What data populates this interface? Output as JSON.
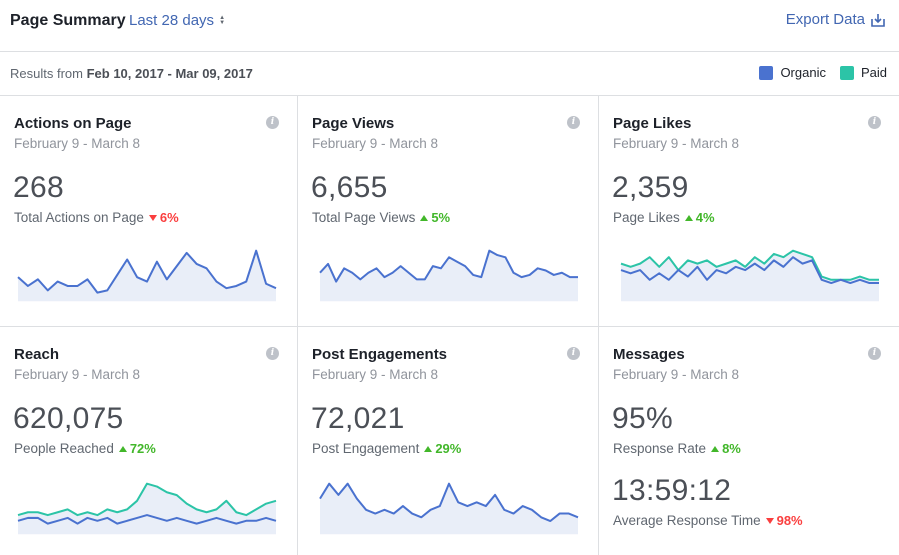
{
  "header": {
    "title": "Page Summary",
    "range_label": "Last 28 days",
    "export_label": "Export Data"
  },
  "subheader": {
    "results_prefix": "Results from",
    "results_range": "Feb 10, 2017 - Mar 09, 2017"
  },
  "legend": [
    {
      "name": "Organic",
      "color": "#4a72cf"
    },
    {
      "name": "Paid",
      "color": "#2cc4a7"
    }
  ],
  "colors": {
    "organic": "#4a72cf",
    "paid": "#2cc4a7",
    "fill": "#e9eef8",
    "up": "#42b72a",
    "down": "#fa3e3e"
  },
  "cards": [
    {
      "title": "Actions on Page",
      "subtitle": "February 9 - March 8",
      "value": "268",
      "metric_label": "Total Actions on Page",
      "change": "6%",
      "direction": "down",
      "organic": [
        10,
        6,
        9,
        4,
        8,
        6,
        6,
        9,
        3,
        4,
        11,
        18,
        10,
        8,
        17,
        9,
        15,
        21,
        16,
        14,
        8,
        5,
        6,
        8,
        22,
        7,
        5
      ],
      "paid": null
    },
    {
      "title": "Page Views",
      "subtitle": "February 9 - March 8",
      "value": "6,655",
      "metric_label": "Total Page Views",
      "change": "5%",
      "direction": "up",
      "organic": [
        12,
        16,
        8,
        14,
        12,
        9,
        12,
        14,
        10,
        12,
        15,
        12,
        9,
        9,
        15,
        14,
        19,
        17,
        15,
        11,
        10,
        22,
        20,
        19,
        12,
        10,
        11,
        14,
        13,
        11,
        12,
        10,
        10
      ],
      "paid": null
    },
    {
      "title": "Page Likes",
      "subtitle": "February 9 - March 8",
      "value": "2,359",
      "metric_label": "Page Likes",
      "change": "4%",
      "direction": "up",
      "organic": [
        9,
        8,
        9,
        6,
        8,
        6,
        9,
        7,
        10,
        6,
        9,
        8,
        10,
        9,
        11,
        9,
        12,
        10,
        13,
        11,
        12,
        6,
        5,
        6,
        5,
        6,
        5,
        5
      ],
      "paid": [
        11,
        10,
        11,
        13,
        10,
        13,
        9,
        12,
        11,
        12,
        10,
        11,
        12,
        10,
        13,
        11,
        14,
        13,
        15,
        14,
        13,
        7,
        6,
        6,
        6,
        7,
        6,
        6
      ]
    },
    {
      "title": "Reach",
      "subtitle": "February 9 - March 8",
      "value": "620,075",
      "metric_label": "People Reached",
      "change": "72%",
      "direction": "up",
      "organic": [
        4,
        5,
        5,
        3,
        4,
        5,
        3,
        5,
        4,
        5,
        3,
        4,
        5,
        6,
        5,
        4,
        5,
        4,
        3,
        4,
        5,
        4,
        3,
        4,
        4,
        5,
        4
      ],
      "paid": [
        6,
        7,
        7,
        6,
        7,
        8,
        6,
        7,
        6,
        8,
        7,
        8,
        11,
        17,
        16,
        14,
        13,
        10,
        8,
        7,
        8,
        11,
        7,
        6,
        8,
        10,
        11
      ]
    },
    {
      "title": "Post Engagements",
      "subtitle": "February 9 - March 8",
      "value": "72,021",
      "metric_label": "Post Engagement",
      "change": "29%",
      "direction": "up",
      "organic": [
        9,
        13,
        10,
        13,
        9,
        6,
        5,
        6,
        5,
        7,
        5,
        4,
        6,
        7,
        13,
        8,
        7,
        8,
        7,
        10,
        6,
        5,
        7,
        6,
        4,
        3,
        5,
        5,
        4
      ],
      "paid": null
    },
    {
      "title": "Messages",
      "subtitle": "February 9 - March 8",
      "value": "95%",
      "metric_label": "Response Rate",
      "change": "8%",
      "direction": "up",
      "value2": "13:59:12",
      "metric_label2": "Average Response Time",
      "change2": "98%",
      "direction2": "down"
    }
  ]
}
